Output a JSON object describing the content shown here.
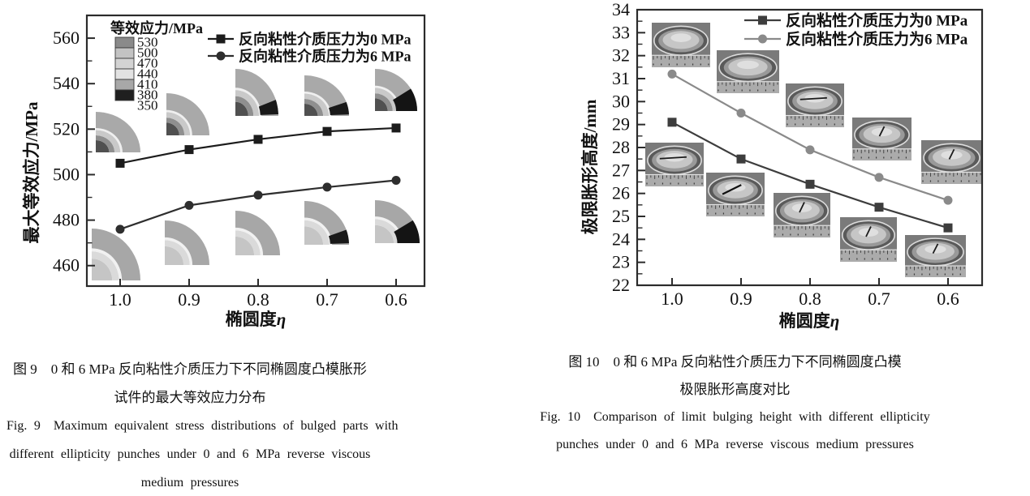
{
  "page": {
    "background": "#ffffff"
  },
  "figures": [
    {
      "caption_lines_cn": [
        "图 9　0 和 6 MPa 反向粘性介质压力下不同椭圆度凸模胀形",
        "试件的最大等效应力分布"
      ],
      "caption_lines_en": [
        "Fig. 9　Maximum equivalent stress distributions of bulged parts with",
        "different ellipticity punches under 0 and 6 MPa reverse viscous",
        "medium pressures"
      ]
    },
    {
      "caption_lines_cn": [
        "图 10　0 和 6 MPa 反向粘性介质压力下不同椭圆度凸模",
        "极限胀形高度对比"
      ],
      "caption_lines_en": [
        "Fig. 10　Comparison of limit bulging height with different ellipticity",
        "punches under 0 and 6 MPa reverse viscous medium pressures"
      ]
    }
  ],
  "chart_data": [
    {
      "type": "line",
      "title": "",
      "xlabel": "椭圆度η",
      "ylabel": "最大等效应力/MPa",
      "categories": [
        "1.0",
        "0.9",
        "0.8",
        "0.7",
        "0.6"
      ],
      "ylim": [
        451,
        570
      ],
      "yticks": [
        460,
        480,
        500,
        520,
        540,
        560
      ],
      "y_minor_step": 10,
      "grid": false,
      "legend_position": "top-right",
      "series": [
        {
          "name": "反向粘性介质压力为0 MPa",
          "marker": "square",
          "color": "#1c1c1c",
          "values": [
            505,
            511,
            515.5,
            519,
            520.5
          ]
        },
        {
          "name": "反向粘性介质压力为6 MPa",
          "marker": "circle",
          "color": "#2e2e2e",
          "values": [
            476,
            486.5,
            491,
            494.5,
            497.5
          ]
        }
      ],
      "colorbar": {
        "title": "等效应力/MPa",
        "labels": [
          "530",
          "500",
          "470",
          "440",
          "410",
          "380",
          "350"
        ],
        "colors": [
          "#8a8a8a",
          "#c3c3c3",
          "#d3d3d3",
          "#e2e2e2",
          "#a8a8a8",
          "#1f1f1f"
        ]
      },
      "insets_note": "quarter-section equivalent stress contour plots of bulged parts, one pair per ellipticity"
    },
    {
      "type": "line",
      "title": "",
      "xlabel": "椭圆度η",
      "ylabel": "极限胀形高度/mm",
      "categories": [
        "1.0",
        "0.9",
        "0.8",
        "0.7",
        "0.6"
      ],
      "ylim": [
        22,
        34
      ],
      "yticks": [
        22,
        23,
        24,
        25,
        26,
        27,
        28,
        29,
        30,
        31,
        32,
        33,
        34
      ],
      "y_minor_step": 0.5,
      "grid": false,
      "legend_position": "top-right",
      "series": [
        {
          "name": "反向粘性介质压力为0 MPa",
          "marker": "square",
          "color": "#3d3d3d",
          "values": [
            29.1,
            27.5,
            26.4,
            25.4,
            24.5
          ]
        },
        {
          "name": "反向粘性介质压力为6 MPa",
          "marker": "circle",
          "color": "#8a8a8a",
          "values": [
            31.2,
            29.5,
            27.9,
            26.7,
            25.7
          ]
        }
      ],
      "insets_note": "photographs of limit-bulged specimens with ruler, one pair per ellipticity"
    }
  ]
}
